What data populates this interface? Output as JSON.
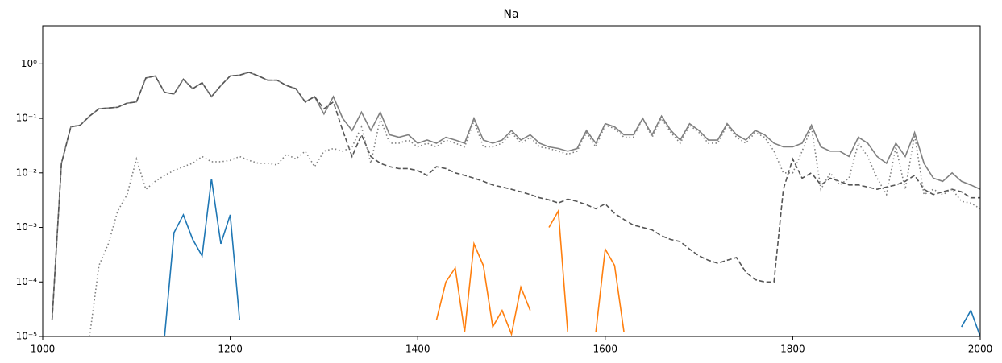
{
  "chart_data": {
    "type": "line",
    "title": "Na",
    "log_y": true,
    "xlim": [
      1000,
      2000
    ],
    "xticks": [
      1000,
      1200,
      1400,
      1600,
      1800,
      2000
    ],
    "ylim": [
      1e-05,
      5
    ],
    "yticks": [
      {
        "value": 1e-05,
        "label": "10⁻⁵"
      },
      {
        "value": 0.0001,
        "label": "10⁻⁴"
      },
      {
        "value": 0.001,
        "label": "10⁻³"
      },
      {
        "value": 0.01,
        "label": "10⁻²"
      },
      {
        "value": 0.1,
        "label": "10⁻¹"
      },
      {
        "value": 1,
        "label": "10⁰"
      }
    ],
    "x": [
      1000,
      1010,
      1020,
      1030,
      1040,
      1050,
      1060,
      1070,
      1080,
      1090,
      1100,
      1110,
      1120,
      1130,
      1140,
      1150,
      1160,
      1170,
      1180,
      1190,
      1200,
      1210,
      1220,
      1230,
      1240,
      1250,
      1260,
      1270,
      1280,
      1290,
      1300,
      1310,
      1320,
      1330,
      1340,
      1350,
      1360,
      1370,
      1380,
      1390,
      1400,
      1410,
      1420,
      1430,
      1440,
      1450,
      1460,
      1470,
      1480,
      1490,
      1500,
      1510,
      1520,
      1530,
      1540,
      1550,
      1560,
      1570,
      1580,
      1590,
      1600,
      1610,
      1620,
      1630,
      1640,
      1650,
      1660,
      1670,
      1680,
      1690,
      1700,
      1710,
      1720,
      1730,
      1740,
      1750,
      1760,
      1770,
      1780,
      1790,
      1800,
      1810,
      1820,
      1830,
      1840,
      1850,
      1860,
      1870,
      1880,
      1890,
      1900,
      1910,
      1920,
      1930,
      1940,
      1950,
      1960,
      1970,
      1980,
      1990,
      2000
    ],
    "series": [
      {
        "color": "#808080",
        "linestyle": "solid",
        "values": [
          null,
          2e-05,
          0.015,
          0.07,
          0.075,
          0.11,
          0.15,
          0.155,
          0.16,
          0.19,
          0.2,
          0.55,
          0.6,
          0.3,
          0.28,
          0.52,
          0.35,
          0.45,
          0.25,
          0.4,
          0.6,
          0.62,
          0.7,
          0.6,
          0.5,
          0.5,
          0.4,
          0.35,
          0.2,
          0.25,
          0.12,
          0.25,
          0.1,
          0.06,
          0.13,
          0.06,
          0.13,
          0.05,
          0.045,
          0.05,
          0.035,
          0.04,
          0.035,
          0.045,
          0.04,
          0.035,
          0.1,
          0.04,
          0.035,
          0.04,
          0.06,
          0.04,
          0.05,
          0.035,
          0.03,
          0.028,
          0.025,
          0.028,
          0.06,
          0.035,
          0.08,
          0.07,
          0.05,
          0.05,
          0.1,
          0.05,
          0.11,
          0.06,
          0.04,
          0.08,
          0.06,
          0.04,
          0.04,
          0.08,
          0.05,
          0.04,
          0.06,
          0.05,
          0.035,
          0.03,
          0.03,
          0.035,
          0.075,
          0.03,
          0.025,
          0.025,
          0.02,
          0.045,
          0.035,
          0.02,
          0.015,
          0.035,
          0.02,
          0.055,
          0.015,
          0.008,
          0.007,
          0.01,
          0.007,
          0.006,
          0.005
        ]
      },
      {
        "color": "#555555",
        "linestyle": "dashed",
        "values": [
          null,
          2e-05,
          0.015,
          0.07,
          0.075,
          0.11,
          0.15,
          0.155,
          0.16,
          0.19,
          0.2,
          0.55,
          0.6,
          0.3,
          0.28,
          0.52,
          0.35,
          0.45,
          0.25,
          0.4,
          0.6,
          0.62,
          0.7,
          0.6,
          0.5,
          0.5,
          0.4,
          0.35,
          0.2,
          0.25,
          0.15,
          0.2,
          0.06,
          0.02,
          0.05,
          0.02,
          0.015,
          0.013,
          0.012,
          0.012,
          0.011,
          0.009,
          0.013,
          0.012,
          0.01,
          0.009,
          0.008,
          0.007,
          0.006,
          0.0055,
          0.005,
          0.0045,
          0.004,
          0.0035,
          0.0032,
          0.0028,
          0.0033,
          0.003,
          0.0026,
          0.0022,
          0.0027,
          0.0018,
          0.0014,
          0.0011,
          0.001,
          0.0009,
          0.0007,
          0.0006,
          0.00055,
          0.0004,
          0.0003,
          0.00025,
          0.00022,
          0.00025,
          0.00028,
          0.00015,
          0.00011,
          0.0001,
          0.0001,
          0.005,
          0.018,
          0.008,
          0.01,
          0.006,
          0.008,
          0.007,
          0.006,
          0.006,
          0.0055,
          0.005,
          0.0055,
          0.006,
          0.007,
          0.009,
          0.005,
          0.004,
          0.0045,
          0.005,
          0.0045,
          0.0035,
          0.0035
        ]
      },
      {
        "color": "#808080",
        "linestyle": "dotted",
        "values": [
          null,
          null,
          null,
          null,
          null,
          1e-05,
          0.0002,
          0.0005,
          0.002,
          0.004,
          0.018,
          0.005,
          0.007,
          0.009,
          0.011,
          0.013,
          0.015,
          0.02,
          0.016,
          0.016,
          0.017,
          0.02,
          0.017,
          0.015,
          0.015,
          0.014,
          0.022,
          0.018,
          0.025,
          0.013,
          0.025,
          0.028,
          0.025,
          0.03,
          0.07,
          0.015,
          0.1,
          0.035,
          0.035,
          0.04,
          0.03,
          0.035,
          0.03,
          0.04,
          0.035,
          0.03,
          0.09,
          0.03,
          0.03,
          0.035,
          0.055,
          0.035,
          0.045,
          0.03,
          0.028,
          0.025,
          0.022,
          0.025,
          0.055,
          0.03,
          0.075,
          0.065,
          0.045,
          0.045,
          0.1,
          0.045,
          0.1,
          0.055,
          0.035,
          0.075,
          0.055,
          0.035,
          0.035,
          0.075,
          0.045,
          0.035,
          0.055,
          0.045,
          0.025,
          0.01,
          0.01,
          0.025,
          0.07,
          0.005,
          0.01,
          0.006,
          0.008,
          0.035,
          0.02,
          0.008,
          0.004,
          0.03,
          0.005,
          0.05,
          0.004,
          0.005,
          0.004,
          0.005,
          0.003,
          0.0028,
          0.0022
        ]
      },
      {
        "color": "#1f77b4",
        "linestyle": "solid",
        "values": [
          null,
          null,
          null,
          null,
          null,
          null,
          null,
          null,
          null,
          null,
          null,
          null,
          null,
          1e-05,
          0.0008,
          0.0017,
          0.0006,
          0.0003,
          0.0078,
          0.0005,
          0.0017,
          2e-05,
          null,
          null,
          null,
          null,
          null,
          null,
          null,
          null,
          null,
          null,
          null,
          null,
          null,
          null,
          null,
          null,
          null,
          null,
          null,
          null,
          null,
          null,
          null,
          null,
          null,
          null,
          null,
          null,
          null,
          null,
          null,
          null,
          null,
          null,
          null,
          null,
          null,
          null,
          null,
          null,
          null,
          null,
          null,
          null,
          null,
          null,
          null,
          null,
          null,
          null,
          null,
          null,
          null,
          null,
          null,
          null,
          null,
          null,
          null,
          null,
          null,
          null,
          null,
          null,
          null,
          null,
          null,
          null,
          null,
          null,
          null,
          null,
          null,
          null,
          null,
          null,
          1.5e-05,
          3e-05,
          1e-05
        ]
      },
      {
        "color": "#ff7f0e",
        "linestyle": "solid",
        "values": [
          null,
          null,
          null,
          null,
          null,
          null,
          null,
          null,
          null,
          null,
          null,
          null,
          null,
          null,
          null,
          null,
          null,
          null,
          null,
          null,
          null,
          null,
          null,
          null,
          null,
          null,
          null,
          null,
          null,
          null,
          null,
          null,
          null,
          null,
          null,
          null,
          null,
          null,
          null,
          null,
          null,
          null,
          2e-05,
          0.0001,
          0.00018,
          1.2e-05,
          0.0005,
          0.0002,
          1.5e-05,
          3e-05,
          1.1e-05,
          8e-05,
          3e-05,
          null,
          0.001,
          0.002,
          1.2e-05,
          null,
          null,
          1.2e-05,
          0.0004,
          0.0002,
          1.2e-05,
          null,
          null,
          null,
          null,
          null,
          null,
          null,
          null,
          null,
          null,
          null,
          null,
          null,
          null,
          null,
          null,
          null,
          null,
          null,
          null,
          null,
          null,
          null,
          null,
          null,
          null,
          null,
          null,
          null,
          null,
          null,
          null,
          null,
          null,
          null,
          null,
          null,
          null
        ]
      }
    ]
  }
}
